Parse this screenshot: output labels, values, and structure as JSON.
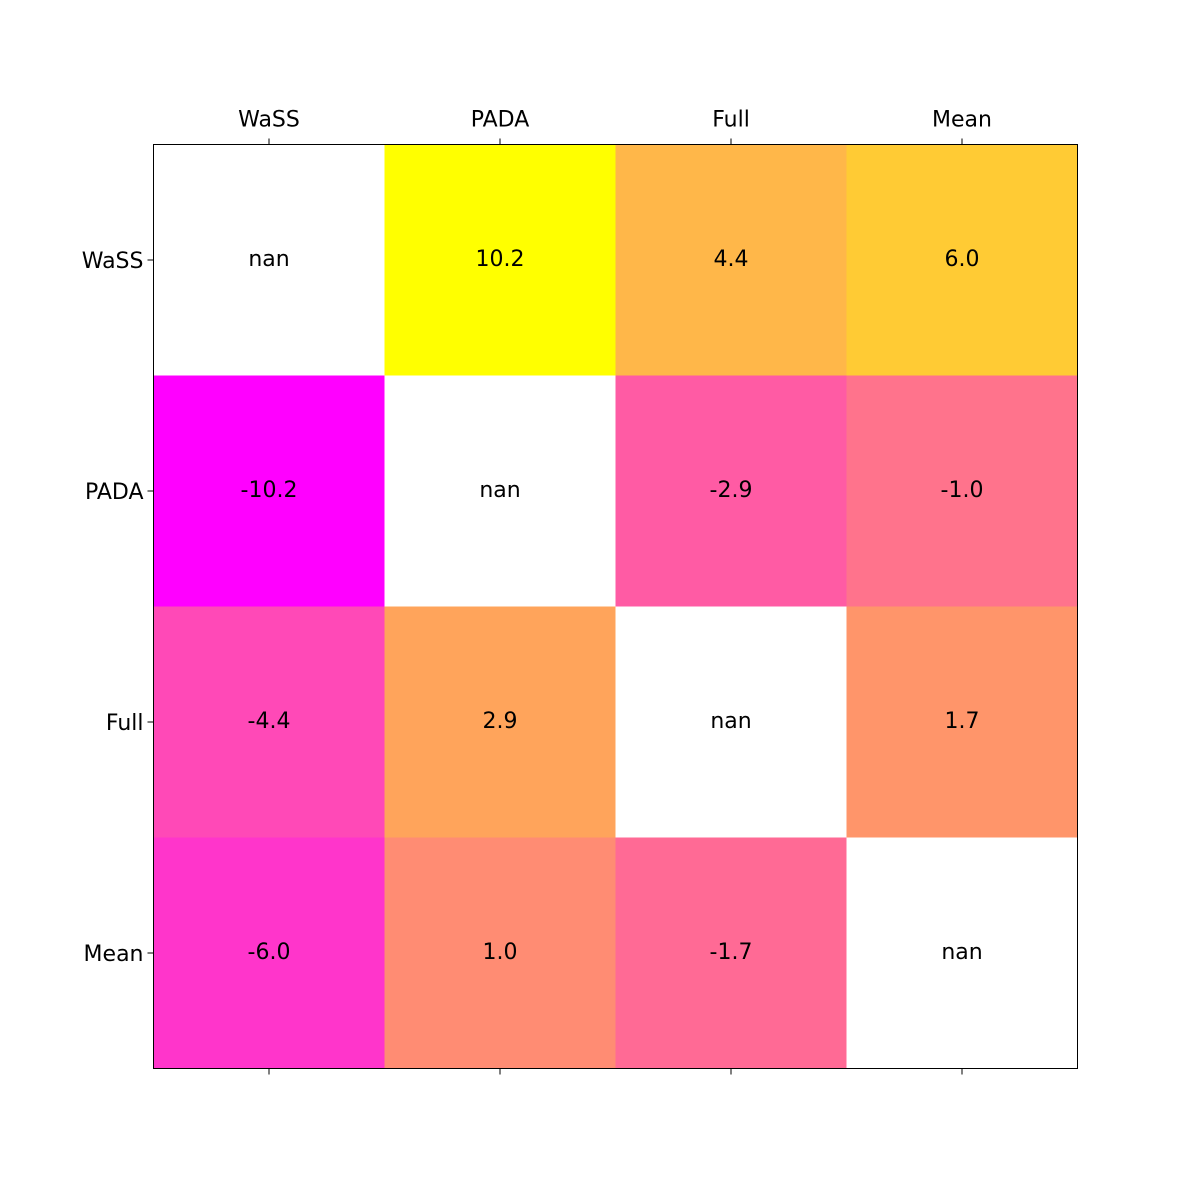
{
  "chart_data": {
    "type": "heatmap",
    "x_categories": [
      "WaSS",
      "PADA",
      "Full",
      "Mean"
    ],
    "y_categories": [
      "WaSS",
      "PADA",
      "Full",
      "Mean"
    ],
    "values": [
      [
        null,
        10.2,
        4.4,
        6.0
      ],
      [
        -10.2,
        null,
        -2.9,
        -1.0
      ],
      [
        -4.4,
        2.9,
        null,
        1.7
      ],
      [
        -6.0,
        1.0,
        -1.7,
        null
      ]
    ],
    "value_labels": [
      [
        "nan",
        "10.2",
        "4.4",
        "6.0"
      ],
      [
        "-10.2",
        "nan",
        "-2.9",
        "-1.0"
      ],
      [
        "-4.4",
        "2.9",
        "nan",
        "1.7"
      ],
      [
        "-6.0",
        "1.0",
        "-1.7",
        "nan"
      ]
    ],
    "colormap": "spring",
    "clim": [
      -10.2,
      10.2
    ],
    "x_ticks_position": "top"
  }
}
